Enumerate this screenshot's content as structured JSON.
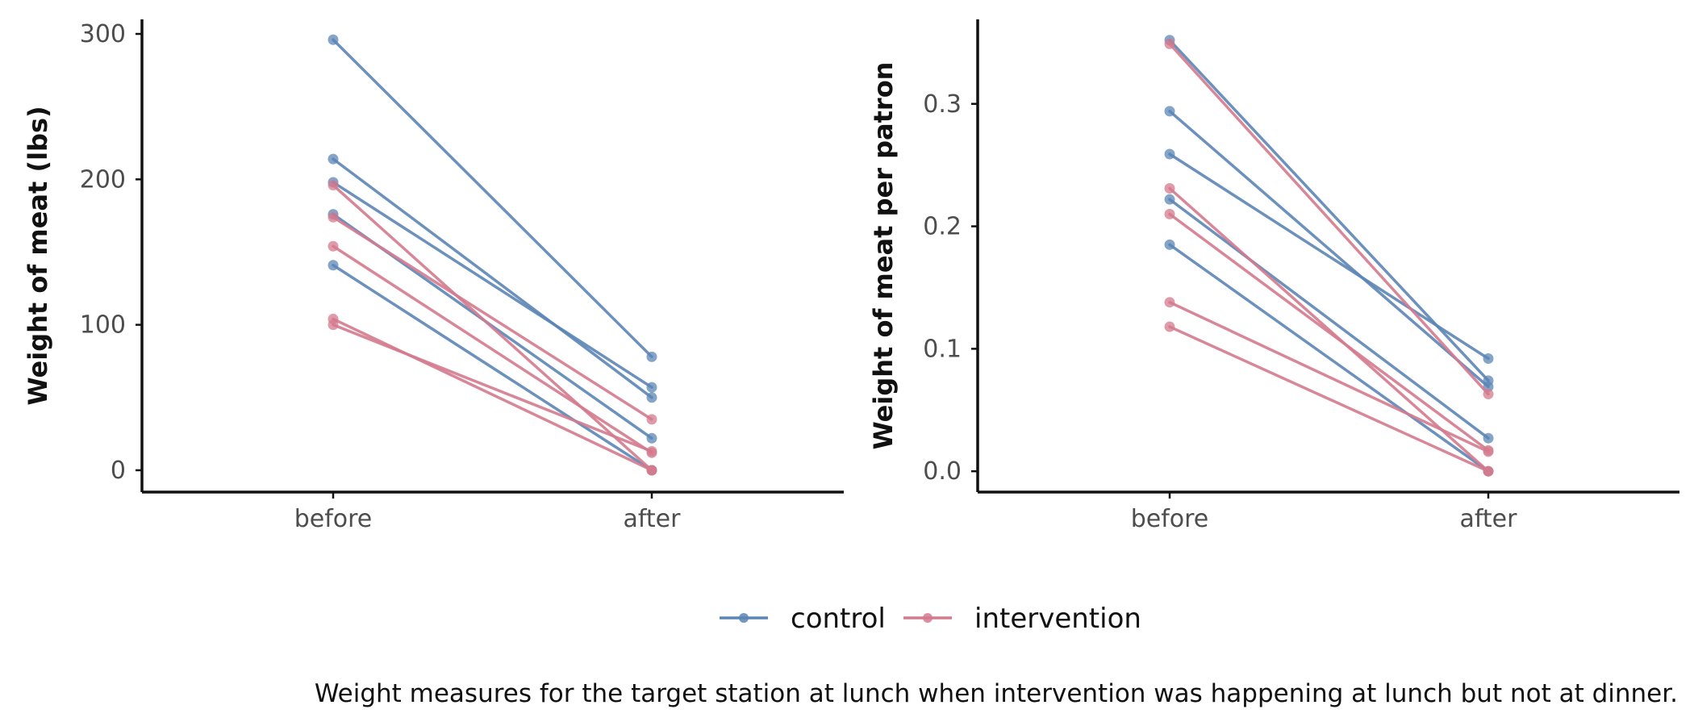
{
  "colors": {
    "control": "#5b85b5",
    "intervention": "#d47a8e",
    "axis": "#111111"
  },
  "legend": {
    "entries": [
      {
        "key": "control",
        "label": "control"
      },
      {
        "key": "intervention",
        "label": "intervention"
      }
    ]
  },
  "caption": "Weight measures for the target station at lunch when intervention was happening at lunch but not at dinner.",
  "chart_data": [
    {
      "type": "line",
      "categories": [
        "before",
        "after"
      ],
      "xlabel": "",
      "ylabel": "Weight of meat (lbs)",
      "ylim": [
        -15,
        310
      ],
      "yticks": [
        0,
        100,
        200,
        300
      ],
      "ytick_labels": [
        "0",
        "100",
        "200",
        "300"
      ],
      "grid": false,
      "series": [
        {
          "group": "control",
          "values": [
            296,
            78
          ]
        },
        {
          "group": "control",
          "values": [
            214,
            50
          ]
        },
        {
          "group": "control",
          "values": [
            198,
            57
          ]
        },
        {
          "group": "control",
          "values": [
            176,
            22
          ]
        },
        {
          "group": "control",
          "values": [
            141,
            0
          ]
        },
        {
          "group": "intervention",
          "values": [
            196,
            0
          ]
        },
        {
          "group": "intervention",
          "values": [
            174,
            35
          ]
        },
        {
          "group": "intervention",
          "values": [
            154,
            12
          ]
        },
        {
          "group": "intervention",
          "values": [
            104,
            0
          ]
        },
        {
          "group": "intervention",
          "values": [
            100,
            13
          ]
        }
      ]
    },
    {
      "type": "line",
      "categories": [
        "before",
        "after"
      ],
      "xlabel": "",
      "ylabel": "Weight of meat per patron",
      "ylim": [
        -0.017,
        0.369
      ],
      "yticks": [
        0.0,
        0.1,
        0.2,
        0.3
      ],
      "ytick_labels": [
        "0.0",
        "0.1",
        "0.2",
        "0.3"
      ],
      "grid": false,
      "series": [
        {
          "group": "control",
          "values": [
            0.352,
            0.074
          ]
        },
        {
          "group": "control",
          "values": [
            0.294,
            0.069
          ]
        },
        {
          "group": "control",
          "values": [
            0.259,
            0.092
          ]
        },
        {
          "group": "control",
          "values": [
            0.222,
            0.027
          ]
        },
        {
          "group": "control",
          "values": [
            0.185,
            0.0
          ]
        },
        {
          "group": "intervention",
          "values": [
            0.349,
            0.063
          ]
        },
        {
          "group": "intervention",
          "values": [
            0.231,
            0.0
          ]
        },
        {
          "group": "intervention",
          "values": [
            0.21,
            0.017
          ]
        },
        {
          "group": "intervention",
          "values": [
            0.138,
            0.016
          ]
        },
        {
          "group": "intervention",
          "values": [
            0.118,
            0.0
          ]
        }
      ]
    }
  ]
}
